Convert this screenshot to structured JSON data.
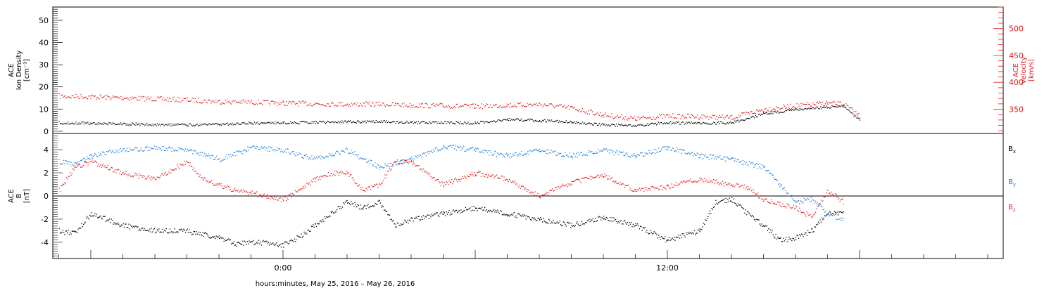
{
  "xlabel": "hours:minutes, May 25, 2016 – May 26, 2016",
  "x_ticks": [
    "0:00",
    "12:00"
  ],
  "colors": {
    "black": "#000000",
    "red": "#e41a1c",
    "blue": "#1f7ed8"
  },
  "chart_data": [
    {
      "type": "scatter",
      "panel": "top",
      "left_ylabel": [
        "ACE",
        "Ion Density",
        "[cm⁻³]"
      ],
      "right_ylabel": [
        "ACE",
        "Velocity",
        "[km/s]"
      ],
      "left_ylim": [
        -1,
        56
      ],
      "right_ylim": [
        305,
        540
      ],
      "left_ticks": [
        "0",
        "10",
        "20",
        "30",
        "40",
        "50"
      ],
      "right_ticks": [
        "350",
        "400",
        "450",
        "500"
      ],
      "x_unit": "hours relative to 2016-05-25 00:00",
      "series": [
        {
          "axis": "left",
          "color": "#000000",
          "x": [
            -7,
            -6,
            -5,
            -4,
            -3,
            -2,
            -1,
            0,
            1,
            2,
            3,
            4,
            5,
            6,
            7,
            8,
            9,
            10,
            11,
            12,
            13,
            14,
            15,
            16,
            17,
            17.5,
            18
          ],
          "values": [
            4,
            3.8,
            3.5,
            3.2,
            3,
            3.3,
            3.8,
            4,
            4.2,
            4.4,
            4.5,
            4.2,
            4,
            3.9,
            5.5,
            5,
            4.3,
            3,
            2.8,
            4,
            3.8,
            4,
            8,
            10,
            11,
            11.5,
            5
          ]
        },
        {
          "axis": "right",
          "color": "#e41a1c",
          "x": [
            -7,
            -6,
            -5,
            -4,
            -3,
            -2,
            -1,
            0,
            1,
            2,
            3,
            4,
            5,
            6,
            7,
            8,
            9,
            10,
            11,
            12,
            13,
            14,
            15,
            16,
            17,
            17.5,
            18
          ],
          "values": [
            375,
            374,
            372,
            370,
            368,
            365,
            364,
            362,
            361,
            360,
            360,
            358,
            357,
            356,
            358,
            360,
            353,
            340,
            333,
            338,
            337,
            335,
            350,
            357,
            362,
            360,
            338
          ]
        }
      ]
    },
    {
      "type": "scatter",
      "panel": "bottom",
      "left_ylabel": [
        "ACE",
        "B",
        "[nT]"
      ],
      "left_ylim": [
        -5.4,
        5.4
      ],
      "left_ticks": [
        "-4",
        "-2",
        "0",
        "2",
        "4"
      ],
      "x_unit": "hours relative to 2016-05-25 00:00",
      "legend": [
        {
          "label": "B",
          "sub": "x",
          "color": "#000000"
        },
        {
          "label": "B",
          "sub": "y",
          "color": "#1f7ed8"
        },
        {
          "label": "B",
          "sub": "z",
          "color": "#e41a1c"
        }
      ],
      "series": [
        {
          "name": "Bx",
          "color": "#000000",
          "x": [
            -7,
            -6.5,
            -6,
            -5,
            -4,
            -3,
            -2.5,
            -2,
            -1.5,
            -1,
            -0.5,
            0,
            0.5,
            1,
            1.5,
            2,
            2.5,
            3,
            3.5,
            4,
            5,
            6,
            7,
            8,
            9,
            10,
            11,
            12,
            13,
            13.5,
            14,
            14.5,
            15,
            15.5,
            16,
            16.5,
            17,
            17.5
          ],
          "values": [
            -3,
            -3.2,
            -1.5,
            -2.5,
            -3,
            -3,
            -3.3,
            -3.5,
            -4.1,
            -4,
            -4,
            -4.2,
            -3.5,
            -2.5,
            -1.5,
            -0.5,
            -1,
            -0.5,
            -2.5,
            -2,
            -1.5,
            -1,
            -1.5,
            -2,
            -2.5,
            -1.8,
            -2.5,
            -3.8,
            -3,
            -0.5,
            -0.3,
            -1.5,
            -2.5,
            -3.8,
            -3.6,
            -3,
            -1.5,
            -1.5
          ]
        },
        {
          "name": "By",
          "color": "#1f7ed8",
          "x": [
            -7,
            -6.5,
            -6,
            -5,
            -4,
            -3,
            -2,
            -1,
            0,
            1,
            2,
            3,
            4,
            5,
            6,
            7,
            8,
            9,
            10,
            11,
            12,
            13,
            14,
            15,
            15.5,
            16,
            16.5,
            17,
            17.5
          ],
          "values": [
            3,
            2.8,
            3.5,
            4,
            4.2,
            4,
            3.2,
            4.2,
            4,
            3.2,
            4,
            2.5,
            3.2,
            4.3,
            4,
            3.5,
            4,
            3.5,
            4,
            3.5,
            4.2,
            3.5,
            3.2,
            2.5,
            1,
            -0.5,
            -0.2,
            -1.5,
            -2
          ]
        },
        {
          "name": "Bz",
          "color": "#e41a1c",
          "x": [
            -7,
            -6.5,
            -6,
            -5,
            -4,
            -3,
            -2.5,
            -2,
            -1.5,
            -1,
            -0.5,
            0,
            0.5,
            1,
            1.5,
            2,
            2.5,
            3,
            3.5,
            4,
            5,
            6,
            7,
            8,
            9,
            10,
            11,
            12,
            13,
            14,
            14.5,
            15,
            15.5,
            16,
            16.5,
            17,
            17.5
          ],
          "values": [
            0.5,
            2.5,
            3,
            2,
            1.5,
            3,
            1.5,
            1,
            0.5,
            0.3,
            0,
            -0.3,
            0.5,
            1.5,
            2,
            2,
            0.5,
            1,
            3,
            3,
            1,
            2,
            1.5,
            0,
            1.2,
            1.8,
            0.5,
            0.8,
            1.5,
            1,
            0.8,
            -0.3,
            -0.7,
            -1,
            -1.8,
            0.5,
            -0.5
          ]
        }
      ]
    }
  ]
}
